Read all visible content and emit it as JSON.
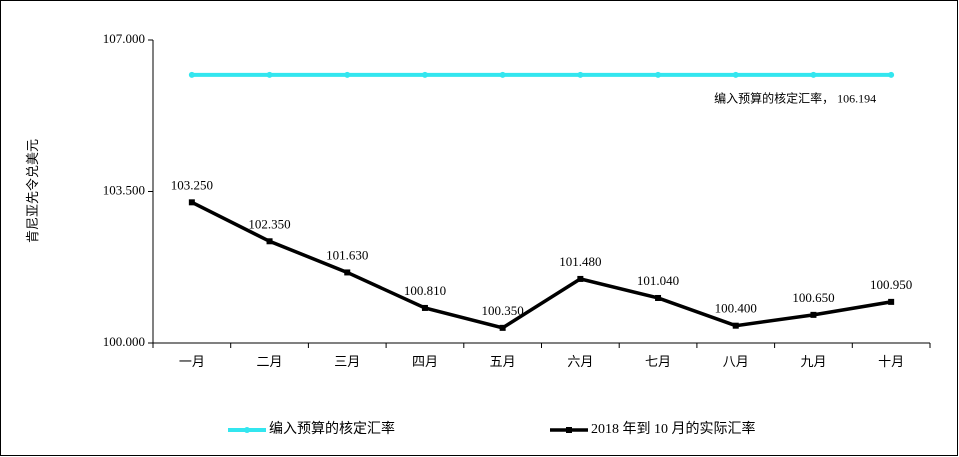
{
  "chart_data": {
    "type": "line",
    "y_label": "肯尼亚先令兑美元",
    "categories": [
      "一月",
      "二月",
      "三月",
      "四月",
      "五月",
      "六月",
      "七月",
      "八月",
      "九月",
      "十月"
    ],
    "series": [
      {
        "name": "编入预算的核定汇率",
        "color": "#33e6ef",
        "values": [
          106.194,
          106.194,
          106.194,
          106.194,
          106.194,
          106.194,
          106.194,
          106.194,
          106.194,
          106.194
        ],
        "annotation": "编入预算的核定汇率， 106.194"
      },
      {
        "name": "2018 年到 10 月的实际汇率",
        "color": "#000000",
        "values": [
          103.25,
          102.35,
          101.63,
          100.81,
          100.35,
          101.48,
          101.04,
          100.4,
          100.65,
          100.95
        ],
        "value_labels": [
          "103.250",
          "102.350",
          "101.630",
          "100.810",
          "100.350",
          "101.480",
          "101.040",
          "100.400",
          "100.650",
          "100.950"
        ]
      }
    ],
    "ylim": [
      100,
      107
    ],
    "yticks": [
      {
        "value": 100,
        "label": "100.000"
      },
      {
        "value": 103.5,
        "label": "103.500"
      },
      {
        "value": 107,
        "label": "107.000"
      }
    ],
    "grid": false
  }
}
